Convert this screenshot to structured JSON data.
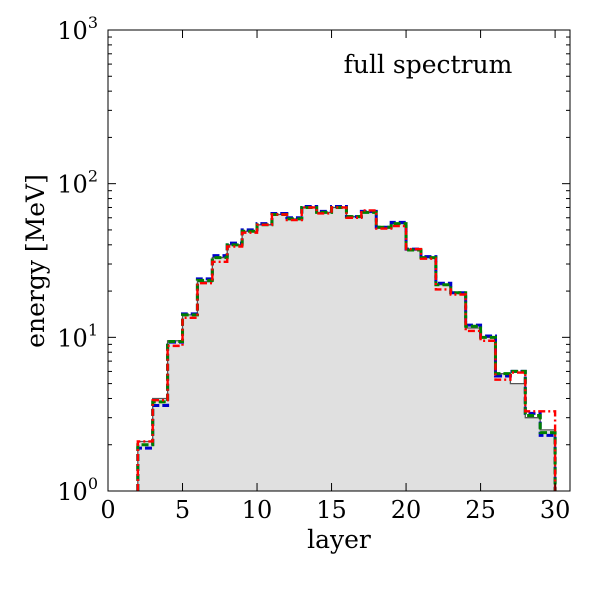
{
  "chart_data": {
    "type": "histogram-step",
    "annotation": "full spectrum",
    "xlabel": "layer",
    "ylabel": "energy [MeV]",
    "xlim": [
      0,
      31
    ],
    "ylim": [
      1,
      1000
    ],
    "yscale": "log",
    "grid": false,
    "x_ticks": [
      0,
      5,
      10,
      15,
      20,
      25,
      30
    ],
    "y_ticks": [
      {
        "value": 1,
        "base": "10",
        "exp": "0"
      },
      {
        "value": 10,
        "base": "10",
        "exp": "1"
      },
      {
        "value": 100,
        "base": "10",
        "exp": "2"
      },
      {
        "value": 1000,
        "base": "10",
        "exp": "3"
      }
    ],
    "bin_edges": [
      2,
      3,
      4,
      5,
      6,
      7,
      8,
      9,
      10,
      11,
      12,
      13,
      14,
      15,
      16,
      17,
      18,
      19,
      20,
      21,
      22,
      23,
      24,
      25,
      26,
      27,
      28,
      29,
      30
    ],
    "filled": {
      "color": "#e0e0e0",
      "values": [
        2.1,
        4.0,
        9.5,
        14.0,
        23.0,
        33.0,
        40.0,
        49.0,
        54.0,
        63.0,
        59.0,
        70.0,
        65.0,
        70.0,
        61.0,
        65.0,
        52.0,
        55.0,
        37.0,
        33.0,
        22.0,
        19.5,
        11.5,
        10.0,
        5.8,
        5.0,
        3.0,
        2.5
      ]
    },
    "series": [
      {
        "color": "#555555",
        "style": "solid",
        "values": [
          2.1,
          4.0,
          9.5,
          14.0,
          23.0,
          33.0,
          40.0,
          49.0,
          54.0,
          63.0,
          59.0,
          70.0,
          65.0,
          70.0,
          61.0,
          65.0,
          52.0,
          55.0,
          37.0,
          33.0,
          22.0,
          19.5,
          11.5,
          10.0,
          5.8,
          5.0,
          3.0,
          2.5
        ]
      },
      {
        "color": "#0000cc",
        "style": "dashed",
        "values": [
          1.9,
          3.6,
          9.3,
          14.2,
          24.0,
          34.0,
          41.0,
          50.0,
          55.0,
          64.0,
          60.0,
          71.0,
          66.0,
          71.0,
          61.0,
          66.0,
          52.0,
          56.0,
          37.5,
          33.5,
          22.5,
          19.5,
          12.0,
          10.2,
          5.6,
          6.0,
          3.2,
          2.3
        ]
      },
      {
        "color": "#008000",
        "style": "dashed",
        "values": [
          2.0,
          3.8,
          9.4,
          14.0,
          23.5,
          33.0,
          40.0,
          49.0,
          54.0,
          63.0,
          59.0,
          70.0,
          65.0,
          70.0,
          61.0,
          65.0,
          52.0,
          55.0,
          37.0,
          33.0,
          22.0,
          19.5,
          11.8,
          10.0,
          5.8,
          6.0,
          3.1,
          2.4
        ]
      },
      {
        "color": "#ff0000",
        "style": "dashdot",
        "values": [
          2.1,
          3.9,
          8.8,
          13.4,
          22.5,
          31.0,
          39.0,
          48.0,
          54.0,
          63.0,
          58.0,
          70.0,
          64.0,
          70.0,
          60.0,
          67.0,
          51.0,
          53.0,
          37.5,
          32.5,
          20.5,
          19.0,
          11.0,
          9.5,
          5.3,
          5.9,
          3.3,
          3.3
        ]
      }
    ]
  }
}
